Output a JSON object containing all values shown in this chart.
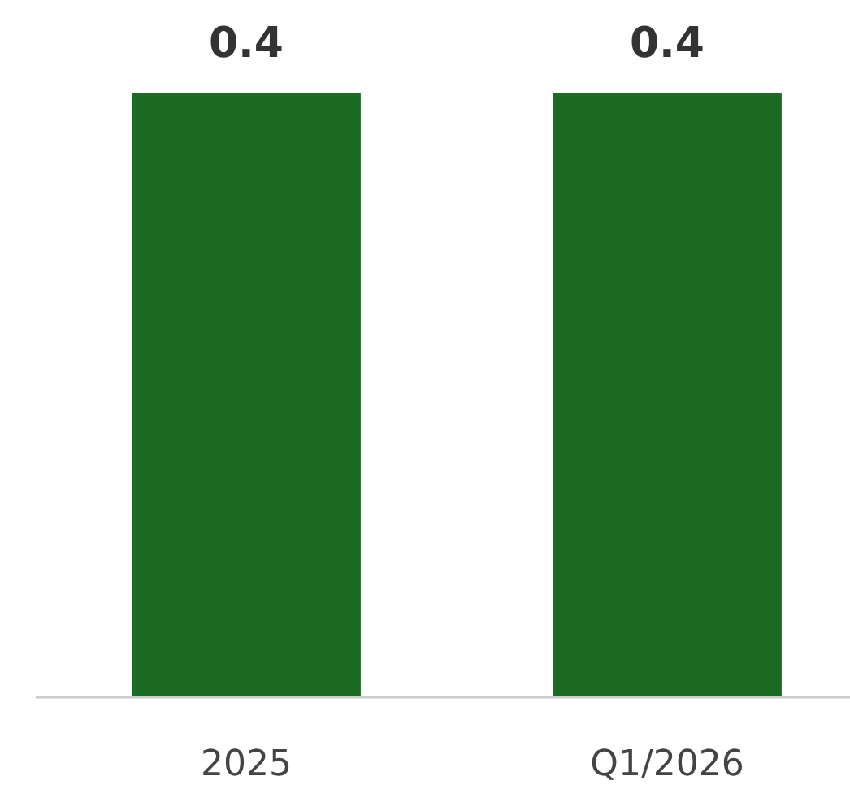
{
  "chart_data": {
    "type": "bar",
    "categories": [
      "2025",
      "Q1/2026"
    ],
    "values": [
      0.4,
      0.4
    ],
    "color": "#1b6b25",
    "data_labels": true
  }
}
